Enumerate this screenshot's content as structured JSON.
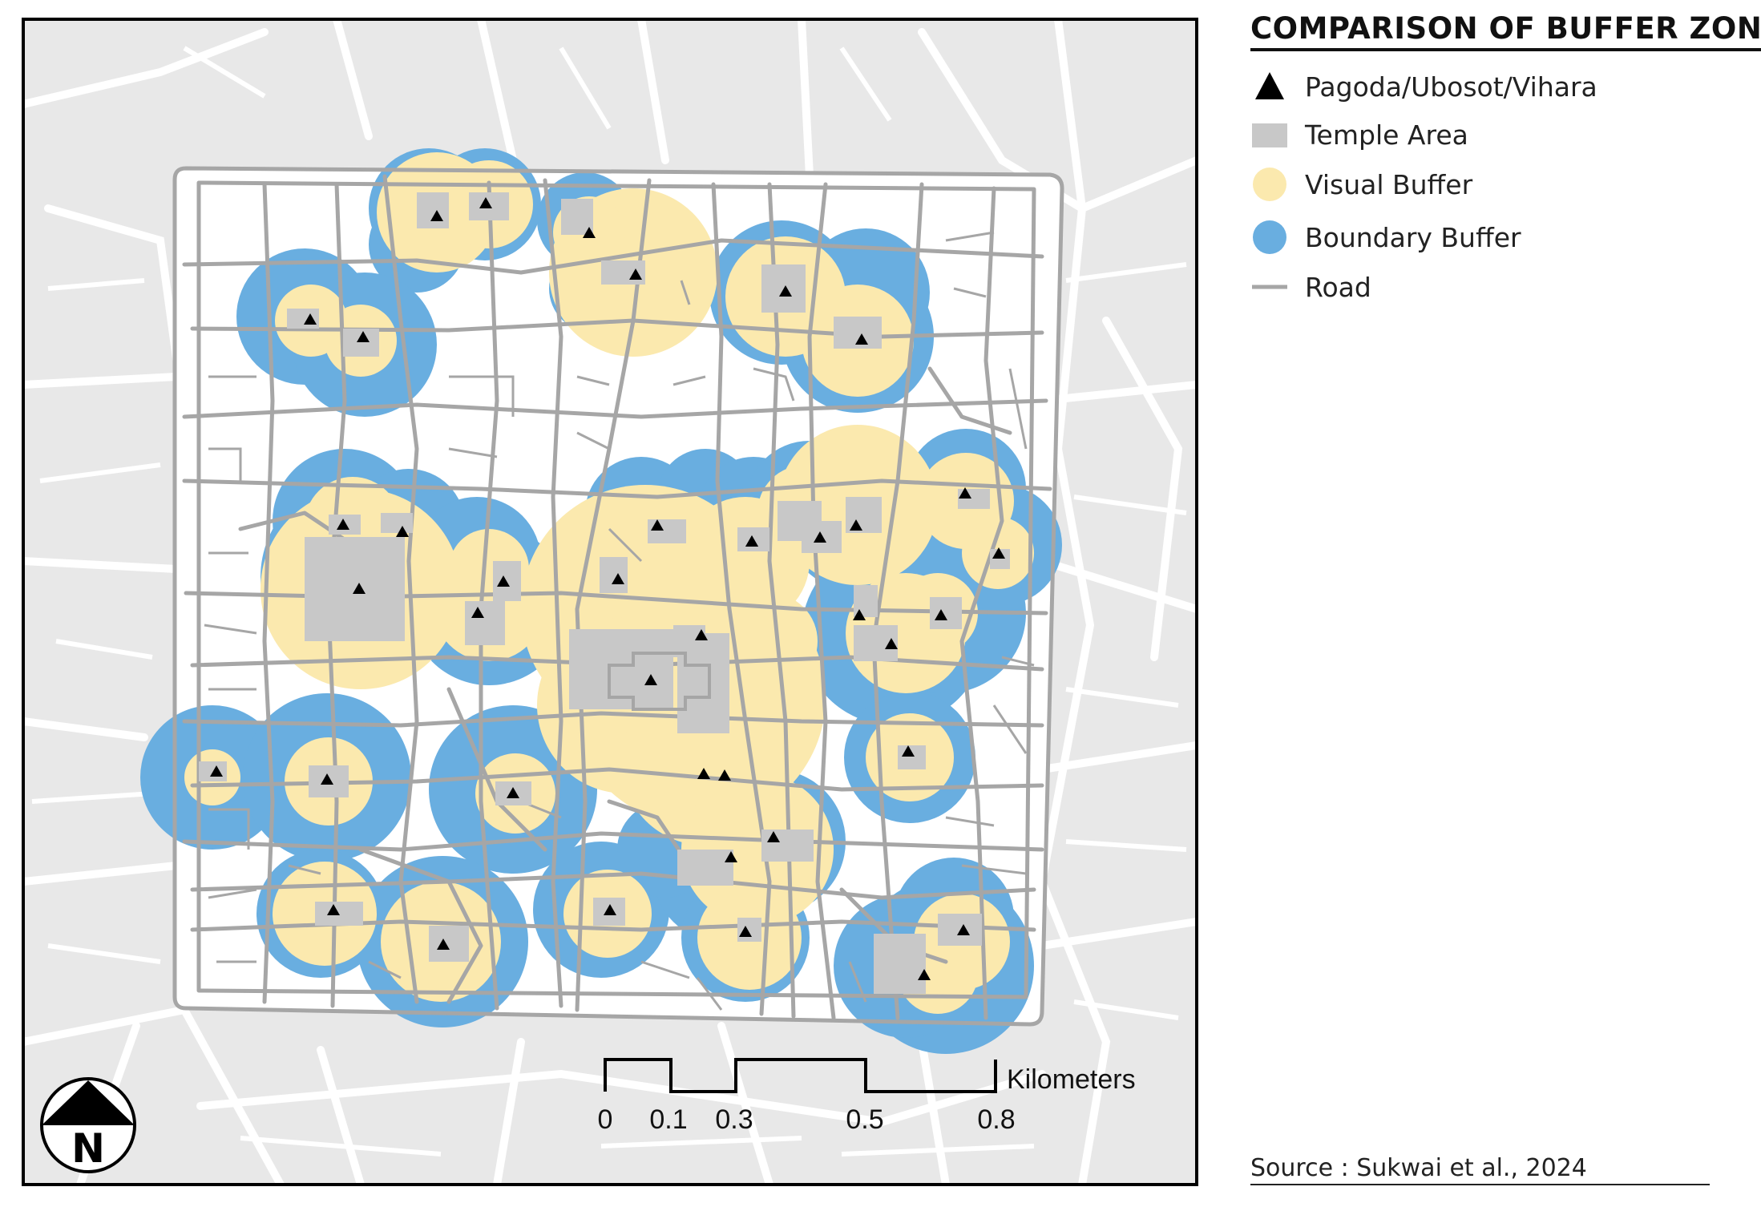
{
  "legend": {
    "title": "COMPARISON OF BUFFER ZONE",
    "items": [
      {
        "label": "Pagoda/Ubosot/Vihara",
        "symbol": "triangle-icon",
        "color": "#000000"
      },
      {
        "label": "Temple Area",
        "symbol": "gray-square-icon",
        "color": "#c8c8c8"
      },
      {
        "label": "Visual Buffer",
        "symbol": "yellow-circle-icon",
        "color": "#fbe9ae"
      },
      {
        "label": "Boundary Buffer",
        "symbol": "blue-circle-icon",
        "color": "#69aee0"
      },
      {
        "label": "Road",
        "symbol": "gray-line-icon",
        "color": "#a6a6a6"
      }
    ]
  },
  "scale_bar": {
    "unit": "Kilometers",
    "ticks": [
      "0",
      "0.1",
      "0.3",
      "0.5",
      "0.8"
    ]
  },
  "north_arrow": {
    "letter": "N"
  },
  "source": "Source : Sukwai et al., 2024",
  "colors": {
    "background": "#e8e8e8",
    "inner_area": "#ffffff",
    "road": "#a6a6a6",
    "temple": "#c8c8c8",
    "visual_buffer": "#fbe9ae",
    "boundary_buffer": "#69aee0",
    "marker": "#000000"
  }
}
